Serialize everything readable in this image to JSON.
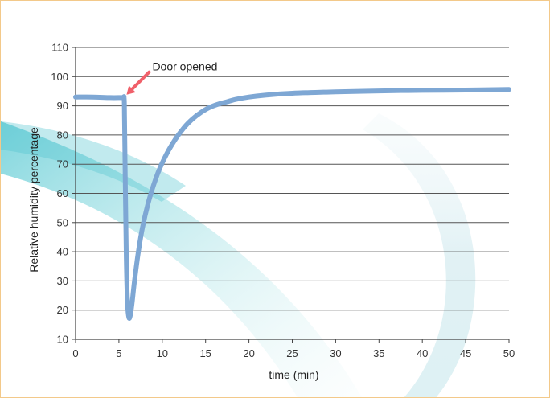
{
  "chart_data": {
    "type": "line",
    "title": "",
    "xlabel": "time (min)",
    "ylabel": "Relative humidity percentage",
    "xlim": [
      0,
      50
    ],
    "ylim": [
      10,
      110
    ],
    "x_ticks": [
      "0",
      "5",
      "10",
      "15",
      "20",
      "25",
      "30",
      "35",
      "40",
      "45",
      "50"
    ],
    "y_ticks": [
      "10",
      "20",
      "30",
      "40",
      "50",
      "60",
      "70",
      "80",
      "90",
      "100",
      "110"
    ],
    "grid": "horizontal",
    "annotation": {
      "text": "Door opened",
      "x": 5.7,
      "y": 93
    },
    "series": [
      {
        "color": "#7ea7d4",
        "x": [
          0,
          2,
          4,
          5.4,
          5.6,
          5.65,
          5.75,
          5.85,
          6.0,
          6.15,
          6.3,
          6.5,
          6.8,
          7.2,
          7.7,
          8.5,
          9.5,
          10.5,
          11.5,
          12.5,
          13.5,
          14.5,
          15.5,
          16.5,
          17.5,
          18.5,
          20,
          22,
          25,
          28,
          30,
          35,
          40,
          45,
          50
        ],
        "y": [
          93,
          93,
          92.8,
          92.8,
          92.5,
          85,
          60,
          38,
          22,
          17.5,
          18,
          22,
          30,
          39,
          48,
          58,
          67,
          73.5,
          78.5,
          82.5,
          85.5,
          87.8,
          89.5,
          90.6,
          91.4,
          92.2,
          93,
          93.7,
          94.3,
          94.6,
          94.8,
          95.1,
          95.3,
          95.4,
          95.6
        ]
      }
    ]
  }
}
